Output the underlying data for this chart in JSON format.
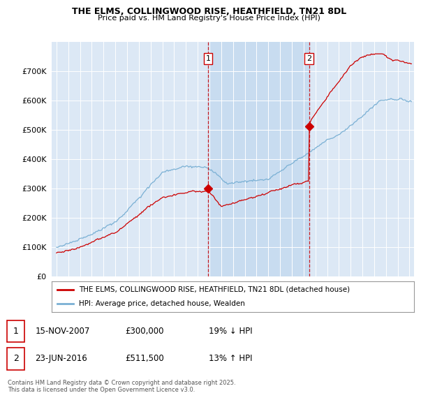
{
  "title1": "THE ELMS, COLLINGWOOD RISE, HEATHFIELD, TN21 8DL",
  "title2": "Price paid vs. HM Land Registry's House Price Index (HPI)",
  "ylim": [
    0,
    800000
  ],
  "yticks": [
    0,
    100000,
    200000,
    300000,
    400000,
    500000,
    600000,
    700000
  ],
  "ytick_labels": [
    "£0",
    "£100K",
    "£200K",
    "£300K",
    "£400K",
    "£500K",
    "£600K",
    "£700K"
  ],
  "xlim_start": 1994.6,
  "xlim_end": 2025.4,
  "background_color": "#ffffff",
  "plot_bg_color": "#dce8f5",
  "grid_color": "#ffffff",
  "line_red_color": "#cc0000",
  "line_blue_color": "#7ab0d4",
  "vline_color": "#cc0000",
  "shade_color": "#c8dcf0",
  "sale1_x": 2007.88,
  "sale1_y": 300000,
  "sale2_x": 2016.47,
  "sale2_y": 511500,
  "legend_line1": "THE ELMS, COLLINGWOOD RISE, HEATHFIELD, TN21 8DL (detached house)",
  "legend_line2": "HPI: Average price, detached house, Wealden",
  "ann1_label": "1",
  "ann2_label": "2",
  "table_ann1_date": "15-NOV-2007",
  "table_ann1_price": "£300,000",
  "table_ann1_hpi": "19% ↓ HPI",
  "table_ann2_date": "23-JUN-2016",
  "table_ann2_price": "£511,500",
  "table_ann2_hpi": "13% ↑ HPI",
  "footer": "Contains HM Land Registry data © Crown copyright and database right 2025.\nThis data is licensed under the Open Government Licence v3.0."
}
